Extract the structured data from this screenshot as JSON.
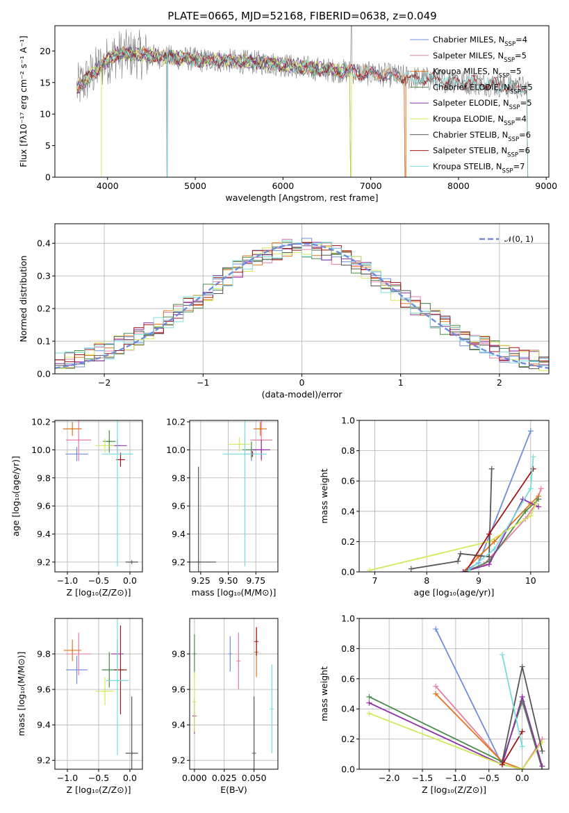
{
  "title": "PLATE=0665, MJD=52168, FIBERID=0638, z=0.049",
  "colors": {
    "Chabrier MILES": "#6d8cde",
    "Salpeter MILES": "#e87ea0",
    "Kroupa MILES": "#e0761b",
    "Chabrier ELODIE": "#4b8a4b",
    "Salpeter ELODIE": "#8f2fa8",
    "Kroupa ELODIE": "#d2e85a",
    "Chabrier STELIB": "#555555",
    "Salpeter STELIB": "#a01515",
    "Kroupa STELIB": "#78dcdc"
  },
  "chart_data": [
    {
      "type": "line",
      "xlabel": "wavelength [Angstrom, rest frame]",
      "ylabel": "Flux [fλ10⁻¹⁷ erg cm⁻² s⁻¹ A⁻¹]",
      "xlim": [
        3400,
        9030
      ],
      "ylim": [
        0,
        24
      ],
      "xticks": [
        "4000",
        "5000",
        "6000",
        "7000",
        "8000",
        "9000"
      ],
      "yticks": [
        "0",
        "5",
        "10",
        "15",
        "20"
      ],
      "grid": false,
      "legend": "top-right",
      "continuum_x": [
        3650,
        3800,
        3950,
        4100,
        4300,
        4500,
        4700,
        4900,
        5100,
        5300,
        5500,
        5700,
        5900,
        6100,
        6300,
        6500,
        6700,
        6900,
        7100,
        7300,
        7500,
        7700,
        7900,
        8100,
        8300,
        8500,
        8700,
        8800
      ],
      "continuum_y": [
        14,
        16,
        18,
        19.5,
        19.5,
        19.2,
        19,
        18.8,
        18.5,
        18.5,
        18.3,
        18.2,
        18,
        17.6,
        17.3,
        17,
        16.8,
        16.5,
        16.3,
        16,
        15.7,
        15.5,
        15.3,
        15,
        14.8,
        14.5,
        14.2,
        14
      ],
      "series": [
        {
          "name": "Chabrier MILES, N_SSP=4",
          "end_x": 7400
        },
        {
          "name": "Salpeter MILES, N_SSP=5",
          "end_x": 7400
        },
        {
          "name": "Kroupa MILES, N_SSP=5",
          "end_x": 7400
        },
        {
          "name": "Chabrier ELODIE, N_SSP=5",
          "end_x": 6780
        },
        {
          "name": "Salpeter ELODIE, N_SSP=5",
          "end_x": 6780
        },
        {
          "name": "Kroupa ELODIE, N_SSP=4",
          "end_x": 6780
        },
        {
          "name": "Chabrier STELIB, N_SSP=6",
          "end_x": 8800
        },
        {
          "name": "Salpeter STELIB, N_SSP=6",
          "end_x": 8800
        },
        {
          "name": "Kroupa STELIB, N_SSP=7",
          "end_x": 8800
        }
      ],
      "gaps": [
        3930,
        4680,
        6780,
        7400
      ]
    },
    {
      "type": "line",
      "xlabel": "(data-model)/error",
      "ylabel": "Normed distribution",
      "xlim": [
        -2.5,
        2.5
      ],
      "ylim": [
        0,
        0.46
      ],
      "xticks": [
        "−2",
        "−1",
        "0",
        "1",
        "2"
      ],
      "yticks": [
        "0.0",
        "0.1",
        "0.2",
        "0.3",
        "0.4"
      ],
      "grid": true,
      "legend": "top-right",
      "reference": {
        "name": "𝒩(0, 1)",
        "mean": 0,
        "sigma": 1
      },
      "bin_width": 0.1
    },
    {
      "type": "scatter",
      "xlabel": "Z [log₁₀(Z/Z⊙)]",
      "ylabel": "age  [log₁₀(age/yr)]",
      "xlim": [
        -1.2,
        0.2
      ],
      "ylim": [
        9.13,
        10.21
      ],
      "xticks": [
        "−1.0",
        "−0.5",
        "0.0"
      ],
      "yticks": [
        "9.2",
        "9.4",
        "9.6",
        "9.8",
        "10.0",
        "10.2"
      ],
      "points": [
        {
          "x": -0.85,
          "y": 9.97,
          "xe": 0.18,
          "ye": 0.05
        },
        {
          "x": -0.82,
          "y": 10.07,
          "xe": 0.2,
          "ye": 0.15
        },
        {
          "x": -0.92,
          "y": 10.15,
          "xe": 0.15,
          "ye": 0.05
        },
        {
          "x": -0.33,
          "y": 10.06,
          "xe": 0.1,
          "ye": 0.08
        },
        {
          "x": -0.2,
          "y": 10.03,
          "xe": 0.15,
          "ye": 0.05
        },
        {
          "x": -0.4,
          "y": 10.03,
          "xe": 0.15,
          "ye": 0.05
        },
        {
          "x": 0.03,
          "y": 9.2,
          "xe": 0.1,
          "ye": 0.0
        },
        {
          "x": -0.15,
          "y": 9.93,
          "xe": 0.07,
          "ye": 0.05
        },
        {
          "x": -0.2,
          "y": 9.97,
          "xe": 0.25,
          "ye": 0.8
        }
      ]
    },
    {
      "type": "scatter",
      "xlabel": "mass [log₁₀(M/M⊙)]",
      "ylabel": "",
      "xlim": [
        9.15,
        9.95
      ],
      "ylim": [
        9.13,
        10.21
      ],
      "xticks": [
        "9.25",
        "9.50",
        "9.75"
      ],
      "yticks": [
        "9.2",
        "9.4",
        "9.6",
        "9.8",
        "10.0",
        "10.2"
      ],
      "points": [
        {
          "x": 9.71,
          "y": 9.97,
          "xe": 0.07,
          "ye": 0.05
        },
        {
          "x": 9.8,
          "y": 10.07,
          "xe": 0.1,
          "ye": 0.15
        },
        {
          "x": 9.79,
          "y": 10.15,
          "xe": 0.06,
          "ye": 0.05
        },
        {
          "x": 9.71,
          "y": 10.0,
          "xe": 0.08,
          "ye": 0.06
        },
        {
          "x": 9.8,
          "y": 10.0,
          "xe": 0.08,
          "ye": 0.07
        },
        {
          "x": 9.6,
          "y": 10.04,
          "xe": 0.1,
          "ye": 0.05
        },
        {
          "x": 9.23,
          "y": 9.2,
          "xe": 0.16,
          "ye": 0.68
        },
        {
          "x": 9.72,
          "y": 9.97,
          "xe": 0.01,
          "ye": 0.02
        },
        {
          "x": 9.65,
          "y": 9.97,
          "xe": 0.2,
          "ye": 0.8
        }
      ]
    },
    {
      "type": "line",
      "xlabel": "age  [log₁₀(age/yr)]",
      "ylabel": "mass weight",
      "xlim": [
        6.7,
        10.35
      ],
      "ylim": [
        0,
        1.0
      ],
      "xticks": [
        "7",
        "8",
        "9",
        "10"
      ],
      "yticks": [
        "0.0",
        "0.2",
        "0.4",
        "0.6",
        "0.8",
        "1.0"
      ],
      "grid": true,
      "series": [
        {
          "name": "Chabrier MILES",
          "x": [
            8.7,
            9.0,
            10.0
          ],
          "y": [
            0.0,
            0.06,
            0.93
          ]
        },
        {
          "name": "Salpeter MILES",
          "x": [
            8.7,
            9.1,
            9.9,
            10.1,
            10.2
          ],
          "y": [
            0.0,
            0.05,
            0.35,
            0.45,
            0.55
          ]
        },
        {
          "name": "Kroupa MILES",
          "x": [
            8.7,
            9.0,
            9.3,
            10.0,
            10.15
          ],
          "y": [
            0.0,
            0.1,
            0.2,
            0.45,
            0.5
          ]
        },
        {
          "name": "Chabrier ELODIE",
          "x": [
            8.75,
            9.2,
            9.9,
            10.15
          ],
          "y": [
            0.0,
            0.07,
            0.4,
            0.48
          ]
        },
        {
          "name": "Salpeter ELODIE",
          "x": [
            8.7,
            9.2,
            9.85,
            10.15
          ],
          "y": [
            0.0,
            0.05,
            0.48,
            0.43
          ]
        },
        {
          "name": "Kroupa ELODIE",
          "x": [
            6.9,
            9.2,
            10.0,
            10.1
          ],
          "y": [
            0.01,
            0.2,
            0.37,
            0.45
          ]
        },
        {
          "name": "Chabrier STELIB",
          "x": [
            7.7,
            8.6,
            8.65,
            9.2,
            9.25
          ],
          "y": [
            0.02,
            0.07,
            0.12,
            0.1,
            0.68
          ]
        },
        {
          "name": "Salpeter STELIB",
          "x": [
            8.75,
            9.2,
            10.05
          ],
          "y": [
            0.0,
            0.25,
            0.68
          ]
        },
        {
          "name": "Kroupa STELIB",
          "x": [
            8.8,
            9.3,
            10.0,
            10.05
          ],
          "y": [
            0.01,
            0.15,
            0.55,
            0.76
          ]
        }
      ]
    },
    {
      "type": "scatter",
      "xlabel": "Z [log₁₀(Z/Z⊙)]",
      "ylabel": "mass [log₁₀(M/M⊙)]",
      "xlim": [
        -1.2,
        0.2
      ],
      "ylim": [
        9.15,
        10.0
      ],
      "xticks": [
        "−1.0",
        "−0.5",
        "0.0"
      ],
      "yticks": [
        "9.2",
        "9.4",
        "9.6",
        "9.8"
      ],
      "points": [
        {
          "x": -0.85,
          "y": 9.71,
          "xe": 0.17,
          "ye": 0.08
        },
        {
          "x": -0.82,
          "y": 9.8,
          "xe": 0.2,
          "ye": 0.12
        },
        {
          "x": -0.92,
          "y": 9.82,
          "xe": 0.14,
          "ye": 0.06
        },
        {
          "x": -0.33,
          "y": 9.71,
          "xe": 0.12,
          "ye": 0.1
        },
        {
          "x": -0.2,
          "y": 9.8,
          "xe": 0.1,
          "ye": 0.08
        },
        {
          "x": -0.4,
          "y": 9.59,
          "xe": 0.15,
          "ye": 0.08
        },
        {
          "x": 0.03,
          "y": 9.24,
          "xe": 0.1,
          "ye": 0.32
        },
        {
          "x": -0.15,
          "y": 9.71,
          "xe": 0.1,
          "ye": 0.25
        },
        {
          "x": -0.2,
          "y": 9.65,
          "xe": 0.18,
          "ye": 0.42
        }
      ]
    },
    {
      "type": "scatter",
      "xlabel": "E(B-V)",
      "ylabel": "",
      "xlim": [
        -0.004,
        0.07
      ],
      "ylim": [
        9.15,
        10.0
      ],
      "xticks": [
        "0.000",
        "0.025",
        "0.050"
      ],
      "yticks": [
        "9.2",
        "9.4",
        "9.6",
        "9.8"
      ],
      "points": [
        {
          "x": 0.03,
          "y": 9.8,
          "ye": 0.1
        },
        {
          "x": 0.037,
          "y": 9.76,
          "ye": 0.16
        },
        {
          "x": 0.052,
          "y": 9.81,
          "ye": 0.14
        },
        {
          "x": 0.0,
          "y": 9.8,
          "ye": 0.11
        },
        {
          "x": 0.0,
          "y": 9.45,
          "ye": 0.1
        },
        {
          "x": 0.0,
          "y": 9.53,
          "ye": 0.17
        },
        {
          "x": 0.05,
          "y": 9.24,
          "ye": 0.32
        },
        {
          "x": 0.052,
          "y": 9.87,
          "ye": 0.08
        },
        {
          "x": 0.065,
          "y": 9.49,
          "ye": 0.25
        }
      ]
    },
    {
      "type": "line",
      "xlabel": "Z [log₁₀(Z/Z⊙)]",
      "ylabel": "mass weight",
      "xlim": [
        -2.45,
        0.4
      ],
      "ylim": [
        0,
        1.0
      ],
      "xticks": [
        "−2.0",
        "−1.5",
        "−1.0",
        "−0.5",
        "0.0"
      ],
      "yticks": [
        "0.0",
        "0.2",
        "0.4",
        "0.6",
        "0.8",
        "1.0"
      ],
      "grid": true,
      "series": [
        {
          "name": "Chabrier MILES",
          "x": [
            -1.3,
            -0.3,
            0.0
          ],
          "y": [
            0.93,
            0.03,
            0.0
          ]
        },
        {
          "name": "Salpeter MILES",
          "x": [
            -1.3,
            -0.3,
            0.0,
            0.3
          ],
          "y": [
            0.55,
            0.05,
            0.0,
            0.2
          ]
        },
        {
          "name": "Kroupa MILES",
          "x": [
            -1.3,
            -0.3,
            0.0
          ],
          "y": [
            0.5,
            0.05,
            0.0
          ]
        },
        {
          "name": "Chabrier ELODIE",
          "x": [
            -2.3,
            -0.3,
            0.0,
            0.3
          ],
          "y": [
            0.48,
            0.05,
            0.45,
            0.0
          ]
        },
        {
          "name": "Salpeter ELODIE",
          "x": [
            -2.3,
            -0.3,
            0.0,
            0.3
          ],
          "y": [
            0.44,
            0.03,
            0.48,
            0.02
          ]
        },
        {
          "name": "Kroupa ELODIE",
          "x": [
            -2.3,
            -0.3,
            0.0,
            0.3
          ],
          "y": [
            0.37,
            0.03,
            0.0,
            0.18
          ]
        },
        {
          "name": "Chabrier STELIB",
          "x": [
            -0.3,
            0.0,
            0.3
          ],
          "y": [
            0.05,
            0.68,
            0.12
          ]
        },
        {
          "name": "Salpeter STELIB",
          "x": [
            -0.3,
            0.0
          ],
          "y": [
            0.03,
            0.25
          ]
        },
        {
          "name": "Kroupa STELIB",
          "x": [
            -0.3,
            0.0
          ],
          "y": [
            0.76,
            0.15
          ]
        }
      ]
    }
  ]
}
